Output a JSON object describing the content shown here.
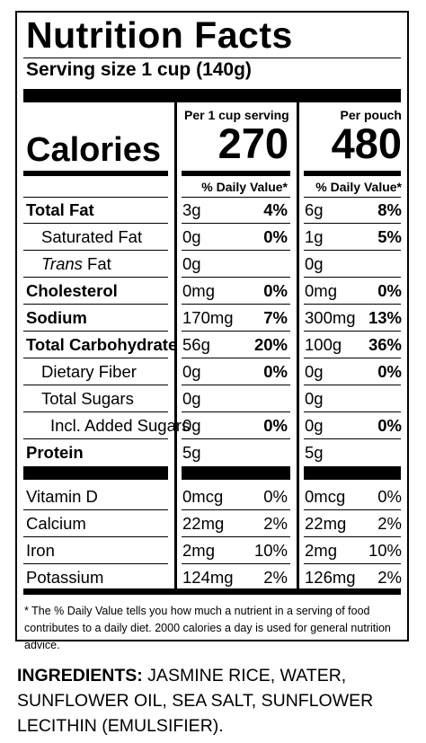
{
  "title": "Nutrition Facts",
  "serving_size": "Serving size 1 cup (140g)",
  "calories_label": "Calories",
  "columns": [
    {
      "header": "Per 1 cup serving",
      "calories": "270",
      "dv_header": "% Daily Value*"
    },
    {
      "header": "Per pouch",
      "calories": "480",
      "dv_header": "% Daily Value*"
    }
  ],
  "nutrients": [
    {
      "name": "Total Fat",
      "bold": true,
      "indent": 0,
      "c1_amt": "3g",
      "c1_pct": "4%",
      "c2_amt": "6g",
      "c2_pct": "8%"
    },
    {
      "name": "Saturated Fat",
      "bold": false,
      "indent": 1,
      "c1_amt": "0g",
      "c1_pct": "0%",
      "c2_amt": "1g",
      "c2_pct": "5%"
    },
    {
      "name_italic": "Trans",
      "name": " Fat",
      "bold": false,
      "indent": 1,
      "c1_amt": "0g",
      "c1_pct": "",
      "c2_amt": "0g",
      "c2_pct": ""
    },
    {
      "name": "Cholesterol",
      "bold": true,
      "indent": 0,
      "c1_amt": "0mg",
      "c1_pct": "0%",
      "c2_amt": "0mg",
      "c2_pct": "0%"
    },
    {
      "name": "Sodium",
      "bold": true,
      "indent": 0,
      "c1_amt": "170mg",
      "c1_pct": "7%",
      "c2_amt": "300mg",
      "c2_pct": "13%"
    },
    {
      "name": "Total Carbohydrate",
      "bold": true,
      "indent": 0,
      "c1_amt": "56g",
      "c1_pct": "20%",
      "c2_amt": "100g",
      "c2_pct": "36%"
    },
    {
      "name": "Dietary Fiber",
      "bold": false,
      "indent": 1,
      "c1_amt": "0g",
      "c1_pct": "0%",
      "c2_amt": "0g",
      "c2_pct": "0%"
    },
    {
      "name": "Total Sugars",
      "bold": false,
      "indent": 1,
      "c1_amt": "0g",
      "c1_pct": "",
      "c2_amt": "0g",
      "c2_pct": ""
    },
    {
      "name": "Incl. Added Sugars",
      "bold": false,
      "indent": 2,
      "c1_amt": "0g",
      "c1_pct": "0%",
      "c2_amt": "0g",
      "c2_pct": "0%"
    },
    {
      "name": "Protein",
      "bold": true,
      "indent": 0,
      "c1_amt": "5g",
      "c1_pct": "",
      "c2_amt": "5g",
      "c2_pct": ""
    }
  ],
  "vitamins": [
    {
      "name": "Vitamin D",
      "c1_amt": "0mcg",
      "c1_pct": "0%",
      "c2_amt": "0mcg",
      "c2_pct": "0%"
    },
    {
      "name": "Calcium",
      "c1_amt": "22mg",
      "c1_pct": "2%",
      "c2_amt": "22mg",
      "c2_pct": "2%"
    },
    {
      "name": "Iron",
      "c1_amt": "2mg",
      "c1_pct": "10%",
      "c2_amt": "2mg",
      "c2_pct": "10%"
    },
    {
      "name": "Potassium",
      "c1_amt": "124mg",
      "c1_pct": "2%",
      "c2_amt": "126mg",
      "c2_pct": "2%"
    }
  ],
  "footnote": "* The % Daily Value tells you how much a nutrient in a serving of food contributes to a daily diet. 2000 calories a day is used for general nutrition advice.",
  "ingredients_label": "INGREDIENTS:",
  "ingredients_text": " JASMINE RICE, WATER, SUNFLOWER OIL, SEA SALT, SUNFLOWER LECITHIN (EMULSIFIER)."
}
